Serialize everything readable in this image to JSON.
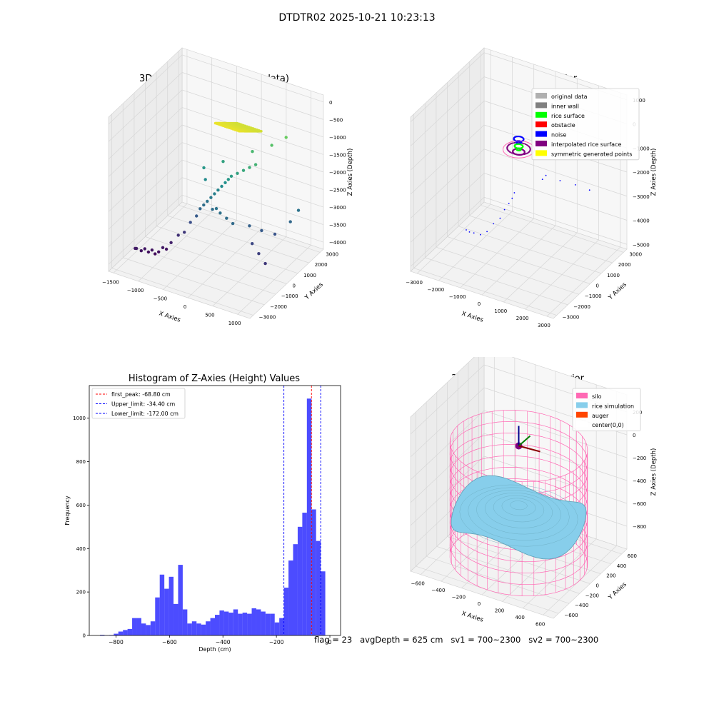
{
  "figure": {
    "suptitle": "DTDTR02 2025-10-21 10:23:13",
    "status_text": "flag = 23   avgDepth = 625 cm   sv1 = 700~2300   sv2 = 700~2300"
  },
  "chart_data": [
    {
      "type": "scatter3d",
      "title": "3D Plot of Silo Interior(row data)",
      "xlabel": "X Axies",
      "ylabel": "Y Axies",
      "zlabel": "Z Axies (Depth)",
      "xlim": [
        -1600,
        1250
      ],
      "ylim": [
        -3300,
        3300
      ],
      "zlim": [
        -4200,
        200
      ],
      "xticks": [
        -1500,
        -1000,
        -500,
        0,
        500,
        1000
      ],
      "yticks": [
        -3000,
        -2000,
        -1000,
        0,
        1000,
        2000,
        3000
      ],
      "zticks": [
        0,
        -500,
        -1000,
        -1500,
        -2000,
        -2500,
        -3000,
        -3500,
        -4000
      ],
      "colormap": "viridis",
      "points": [
        [
          -1400,
          -1800,
          -3900
        ],
        [
          -1350,
          -1900,
          -3850
        ],
        [
          -1300,
          -1700,
          -3950
        ],
        [
          -1250,
          -1600,
          -3900
        ],
        [
          -1200,
          -1500,
          -4000
        ],
        [
          -1150,
          -1400,
          -3950
        ],
        [
          -1100,
          -1350,
          -4050
        ],
        [
          -1050,
          -1250,
          -4000
        ],
        [
          -1000,
          -1100,
          -3900
        ],
        [
          -950,
          -1000,
          -3950
        ],
        [
          -900,
          -800,
          -3800
        ],
        [
          -800,
          -600,
          -3600
        ],
        [
          -700,
          -500,
          -3500
        ],
        [
          -600,
          -400,
          -3200
        ],
        [
          -500,
          -300,
          -3000
        ],
        [
          -450,
          -200,
          -2800
        ],
        [
          -400,
          -100,
          -2700
        ],
        [
          -350,
          0,
          -2600
        ],
        [
          -300,
          100,
          -2500
        ],
        [
          -250,
          200,
          -2400
        ],
        [
          -200,
          300,
          -2300
        ],
        [
          -150,
          400,
          -2200
        ],
        [
          -100,
          500,
          -2100
        ],
        [
          -50,
          550,
          -2000
        ],
        [
          0,
          600,
          -1900
        ],
        [
          100,
          700,
          -1800
        ],
        [
          200,
          800,
          -1700
        ],
        [
          300,
          900,
          -1600
        ],
        [
          400,
          1000,
          -1500
        ],
        [
          -200,
          -200,
          -2700
        ],
        [
          -100,
          -300,
          -2600
        ],
        [
          0,
          -400,
          -2650
        ],
        [
          150,
          -500,
          -2700
        ],
        [
          300,
          -600,
          -2750
        ],
        [
          500,
          0,
          -2900
        ],
        [
          700,
          200,
          -3000
        ],
        [
          900,
          500,
          -3100
        ],
        [
          1100,
          1000,
          -2800
        ],
        [
          1150,
          1500,
          -2600
        ],
        [
          600,
          -200,
          -3300
        ],
        [
          800,
          -500,
          -3400
        ],
        [
          1000,
          -800,
          -3500
        ],
        [
          -500,
          500,
          -2200
        ],
        [
          -600,
          800,
          -2000
        ],
        [
          -300,
          1200,
          -1800
        ],
        [
          200,
          1600,
          -1400
        ],
        [
          500,
          2000,
          -1200
        ],
        [
          700,
          2400,
          -1000
        ]
      ],
      "surface": {
        "x_range": [
          -300,
          200
        ],
        "y_range": [
          500,
          2500
        ],
        "z_range": [
          -1500,
          -500
        ]
      }
    },
    {
      "type": "scatter3d",
      "title": "3D classify of Silo Interior",
      "xlabel": "X Axies",
      "ylabel": "Y Axies",
      "zlabel": "Z Axies (Depth)",
      "xlim": [
        -3300,
        3300
      ],
      "ylim": [
        -3300,
        3300
      ],
      "zlim": [
        -5200,
        1200
      ],
      "xticks": [
        -3000,
        -2000,
        -1000,
        0,
        1000,
        2000,
        3000
      ],
      "yticks": [
        -3000,
        -2000,
        -1000,
        0,
        1000,
        2000,
        3000
      ],
      "zticks": [
        1000,
        0,
        -1000,
        -2000,
        -3000,
        -4000,
        -5000
      ],
      "legend": {
        "position": "top-right",
        "items": [
          {
            "label": "original data",
            "color": "#b0b0b0"
          },
          {
            "label": "inner wall",
            "color": "#808080"
          },
          {
            "label": "rice surface",
            "color": "#00ff00"
          },
          {
            "label": "obstacle",
            "color": "#ff0000"
          },
          {
            "label": "noise",
            "color": "#0000ff"
          },
          {
            "label": "interpolated rice surface",
            "color": "#800080"
          },
          {
            "label": "symmetric generated points",
            "color": "#ffff00"
          }
        ]
      },
      "clusters": [
        {
          "class": "interpolated rice surface",
          "center": [
            0,
            0,
            -600
          ],
          "radius": 700
        },
        {
          "class": "noise",
          "center": [
            0,
            0,
            -200
          ],
          "radius": 300
        },
        {
          "class": "rice surface",
          "center": [
            0,
            0,
            -500
          ],
          "radius": 250
        }
      ],
      "noise_points": [
        [
          -1500,
          -1800,
          -3600
        ],
        [
          -1400,
          -1700,
          -3700
        ],
        [
          -1300,
          -1500,
          -3800
        ],
        [
          -1100,
          -1300,
          -3900
        ],
        [
          -900,
          -1100,
          -3800
        ],
        [
          -700,
          -900,
          -3500
        ],
        [
          -500,
          -700,
          -3300
        ],
        [
          -400,
          -500,
          -3000
        ],
        [
          -300,
          -300,
          -2800
        ],
        [
          -200,
          -200,
          -2600
        ],
        [
          -150,
          -100,
          -2400
        ],
        [
          1000,
          500,
          -1600
        ],
        [
          1500,
          800,
          -1800
        ],
        [
          2000,
          1200,
          -2000
        ],
        [
          2500,
          1500,
          -2200
        ],
        [
          1200,
          -200,
          -1400
        ]
      ]
    },
    {
      "type": "histogram",
      "title": "Histogram of Z-Axies (Height) Values",
      "xlabel": "Depth (cm)",
      "ylabel": "Frequency",
      "xlim": [
        -900,
        40
      ],
      "ylim": [
        0,
        1150
      ],
      "xticks": [
        -800,
        -600,
        -400,
        -200,
        0
      ],
      "yticks": [
        0,
        200,
        400,
        600,
        800,
        1000
      ],
      "bin_start": -860,
      "bin_width": 17.2,
      "color": "#0000ff",
      "values": [
        3,
        1,
        2,
        8,
        18,
        25,
        30,
        80,
        80,
        55,
        48,
        65,
        175,
        280,
        215,
        270,
        145,
        325,
        120,
        55,
        65,
        55,
        50,
        65,
        80,
        95,
        115,
        110,
        105,
        120,
        100,
        105,
        100,
        125,
        120,
        110,
        100,
        100,
        60,
        80,
        220,
        345,
        420,
        500,
        565,
        1090,
        580,
        435,
        295
      ],
      "vlines": [
        {
          "label": "first_peak: -68.80 cm",
          "x": -68.8,
          "color": "#ff0000"
        },
        {
          "label": "Upper_limit: -34.40 cm",
          "x": -34.4,
          "color": "#0000ff"
        },
        {
          "label": "Lower_limit: -172.00 cm",
          "x": -172.0,
          "color": "#0000ff"
        }
      ],
      "legend": {
        "position": "top-left"
      }
    },
    {
      "type": "surface3d",
      "title": "3D simulation of Silo Interior",
      "xlabel": "X Axies",
      "ylabel": "Y Axies",
      "zlabel": "Z Axies (Depth)",
      "xlim": [
        -700,
        700
      ],
      "ylim": [
        -700,
        700
      ],
      "zlim": [
        -1000,
        350
      ],
      "xticks": [
        -600,
        -400,
        -200,
        0,
        200,
        400,
        600
      ],
      "yticks": [
        -600,
        -400,
        -200,
        0,
        200,
        400,
        600
      ],
      "zticks": [
        200,
        0,
        -200,
        -400,
        -600,
        -800
      ],
      "legend": {
        "position": "top-right",
        "items": [
          {
            "label": "silo",
            "color": "#ff69b4"
          },
          {
            "label": "rice simulation",
            "color": "#87ceeb"
          },
          {
            "label": "auger",
            "color": "#ff4500"
          },
          {
            "label": "center(0,0)",
            "color": "#ffffff"
          }
        ]
      },
      "silo": {
        "radius": 600,
        "z_top": 0,
        "z_bottom": -1000
      },
      "rice_surface_depth": -625
    }
  ]
}
